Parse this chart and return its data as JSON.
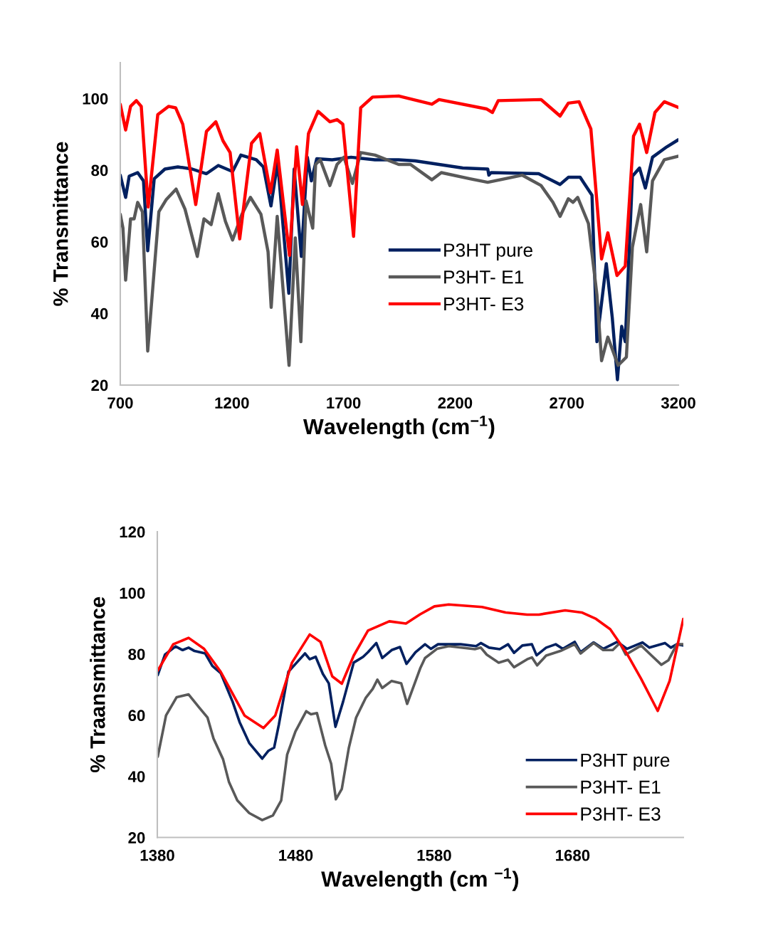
{
  "chart_data": [
    {
      "type": "line",
      "xlabel": "Wavelength (cm$^{−1}$)",
      "ylabel": "% Transmittance",
      "xlim": [
        700,
        3200
      ],
      "ylim": [
        20,
        110
      ],
      "xticks": [
        700,
        1200,
        1700,
        2200,
        2700,
        3200
      ],
      "yticks": [
        20,
        40,
        60,
        80,
        100
      ],
      "legend": "right",
      "series": [
        {
          "name": "P3HT pure",
          "color": "#002060",
          "x": [
            700,
            724,
            740,
            778,
            804,
            823,
            852,
            900,
            958,
            1022,
            1086,
            1139,
            1203,
            1240,
            1309,
            1341,
            1375,
            1405,
            1455,
            1479,
            1511,
            1538,
            1556,
            1580,
            1649,
            1734,
            1841,
            1947,
            2021,
            2234,
            2346,
            2351,
            2361,
            2574,
            2670,
            2707,
            2760,
            2813,
            2835,
            2877,
            2904,
            2927,
            2946,
            2962,
            2994,
            3026,
            3052,
            3084,
            3148,
            3200
          ],
          "values": [
            78.6,
            72.4,
            78.3,
            79.3,
            77.0,
            57.5,
            77.6,
            80.3,
            80.9,
            80.3,
            79.0,
            81.3,
            79.6,
            84.2,
            82.9,
            80.9,
            70.0,
            82.2,
            45.6,
            80.3,
            55.9,
            83.6,
            77.0,
            83.2,
            82.9,
            83.6,
            82.9,
            82.9,
            82.6,
            80.6,
            80.3,
            78.6,
            79.3,
            79.0,
            76.0,
            78.0,
            78.0,
            73.0,
            32.1,
            53.9,
            38.7,
            21.5,
            36.4,
            32.1,
            78.3,
            80.6,
            75.0,
            83.6,
            86.5,
            88.5
          ]
        },
        {
          "name": "P3HT- E1",
          "color": "#595959",
          "x": [
            700,
            712,
            724,
            746,
            762,
            778,
            799,
            823,
            873,
            905,
            950,
            990,
            1045,
            1075,
            1107,
            1139,
            1171,
            1203,
            1245,
            1283,
            1330,
            1362,
            1376,
            1403,
            1431,
            1456,
            1484,
            1509,
            1532,
            1562,
            1575,
            1596,
            1639,
            1671,
            1702,
            1740,
            1777,
            1841,
            1947,
            2000,
            2096,
            2138,
            2266,
            2346,
            2500,
            2585,
            2638,
            2670,
            2707,
            2728,
            2749,
            2797,
            2835,
            2856,
            2884,
            2930,
            2967,
            2994,
            3031,
            3058,
            3084,
            3137,
            3200
          ],
          "values": [
            67.7,
            63.8,
            49.3,
            66.4,
            66.4,
            71.0,
            68.4,
            29.5,
            68.4,
            71.7,
            74.7,
            69.1,
            55.9,
            66.4,
            64.8,
            73.4,
            65.7,
            60.5,
            67.7,
            72.4,
            67.7,
            57.2,
            41.7,
            67.1,
            45.3,
            25.5,
            61.1,
            32.1,
            71.4,
            63.8,
            81.6,
            82.9,
            75.7,
            81.6,
            83.6,
            76.3,
            84.9,
            84.2,
            81.6,
            81.6,
            77.3,
            79.3,
            77.6,
            76.6,
            78.6,
            75.7,
            71.0,
            67.1,
            72.0,
            71.0,
            72.4,
            65.1,
            45.3,
            26.8,
            33.4,
            25.5,
            27.8,
            58.5,
            70.4,
            57.2,
            77.0,
            82.9,
            83.9
          ]
        },
        {
          "name": "P3HT- E3",
          "color": "#ff0000",
          "x": [
            700,
            724,
            746,
            772,
            794,
            825,
            868,
            916,
            948,
            980,
            1038,
            1086,
            1128,
            1160,
            1192,
            1235,
            1288,
            1325,
            1373,
            1403,
            1458,
            1490,
            1516,
            1543,
            1586,
            1639,
            1671,
            1697,
            1745,
            1777,
            1830,
            1947,
            2096,
            2128,
            2340,
            2367,
            2393,
            2585,
            2670,
            2707,
            2755,
            2808,
            2856,
            2884,
            2925,
            2962,
            2999,
            3026,
            3058,
            3095,
            3137,
            3200
          ],
          "values": [
            98.4,
            91.2,
            97.8,
            99.4,
            97.8,
            69.7,
            95.5,
            97.8,
            97.4,
            92.8,
            70.4,
            90.8,
            93.5,
            88.2,
            84.9,
            60.8,
            87.5,
            90.2,
            73.7,
            85.6,
            56.2,
            86.5,
            70.4,
            90.2,
            96.4,
            93.5,
            94.1,
            92.8,
            61.5,
            97.4,
            100.4,
            100.7,
            98.4,
            99.7,
            97.1,
            96.1,
            99.4,
            99.7,
            95.1,
            98.7,
            99.1,
            91.5,
            55.2,
            62.5,
            50.6,
            53.2,
            89.5,
            92.8,
            84.9,
            96.1,
            99.1,
            97.5
          ]
        }
      ]
    },
    {
      "type": "line",
      "xlabel": "Wavelength (cm $^{−1}$)",
      "ylabel": "% Traansmittance",
      "xlim": [
        1380,
        1760
      ],
      "ylim": [
        20,
        120
      ],
      "xticks": [
        1380,
        1480,
        1580,
        1680
      ],
      "yticks": [
        20,
        40,
        60,
        80,
        100,
        120
      ],
      "legend": "lower right",
      "series": [
        {
          "name": "P3HT pure",
          "color": "#002060",
          "x": [
            1380.3,
            1385.5,
            1393.2,
            1398.3,
            1402.6,
            1406.9,
            1414.6,
            1419.8,
            1425.8,
            1434.4,
            1439.5,
            1446.4,
            1455.8,
            1460.1,
            1464.4,
            1467.8,
            1474.7,
            1480.7,
            1486.7,
            1490.1,
            1494.4,
            1499.6,
            1503.9,
            1508.7,
            1514.2,
            1521.9,
            1528.7,
            1532.2,
            1538.2,
            1542.5,
            1549.3,
            1555.3,
            1560.0,
            1566.5,
            1573.4,
            1577.7,
            1582.8,
            1599.1,
            1610.3,
            1613.7,
            1619.7,
            1627.4,
            1633.4,
            1637.7,
            1643.7,
            1650.6,
            1654.0,
            1660.9,
            1667.8,
            1672.9,
            1681.5,
            1685.8,
            1695.2,
            1702.1,
            1712.4,
            1719.2,
            1730.4,
            1735.5,
            1746.7,
            1751.0,
            1755.3,
            1760.0
          ],
          "values": [
            73.1,
            79.8,
            82.5,
            81.3,
            82.1,
            81.0,
            80.2,
            76.1,
            73.8,
            64.4,
            57.7,
            50.9,
            45.8,
            48.3,
            49.4,
            56.9,
            74.2,
            77.2,
            80.2,
            78.3,
            79.1,
            73.5,
            70.4,
            56.2,
            64.4,
            77.2,
            79.1,
            80.6,
            83.6,
            78.7,
            81.3,
            82.3,
            76.8,
            80.6,
            83.2,
            81.7,
            83.2,
            83.2,
            82.6,
            83.6,
            82.1,
            81.6,
            83.2,
            80.4,
            82.8,
            83.2,
            79.6,
            82.1,
            83.2,
            81.7,
            84.0,
            80.6,
            83.8,
            81.7,
            84.0,
            81.7,
            83.8,
            82.1,
            83.6,
            82.1,
            83.2,
            82.8
          ]
        },
        {
          "name": "P3HT- E1",
          "color": "#595959",
          "x": [
            1380.3,
            1386.3,
            1394.0,
            1402.6,
            1410.3,
            1416.3,
            1420.6,
            1427.5,
            1431.8,
            1437.8,
            1446.4,
            1455.8,
            1463.5,
            1469.5,
            1473.8,
            1479.8,
            1487.6,
            1491.0,
            1495.3,
            1501.3,
            1505.6,
            1509.0,
            1513.3,
            1518.4,
            1523.6,
            1530.5,
            1535.6,
            1539.0,
            1542.5,
            1549.3,
            1556.2,
            1560.5,
            1569.9,
            1573.4,
            1582.0,
            1590.5,
            1609.4,
            1613.7,
            1618.0,
            1626.6,
            1633.4,
            1637.7,
            1647.2,
            1650.6,
            1654.4,
            1660.9,
            1671.2,
            1681.5,
            1685.8,
            1695.2,
            1702.1,
            1709.0,
            1714.1,
            1718.4,
            1729.5,
            1736.4,
            1744.1,
            1749.3,
            1755.3,
            1760.0
          ],
          "values": [
            46.4,
            59.9,
            65.9,
            66.8,
            62.5,
            59.2,
            52.4,
            45.6,
            38.1,
            32.1,
            28.0,
            25.7,
            27.2,
            32.1,
            47.1,
            54.7,
            61.3,
            60.3,
            60.7,
            50.1,
            44.1,
            32.5,
            35.9,
            49.4,
            59.2,
            65.6,
            68.6,
            71.6,
            68.9,
            71.2,
            70.4,
            63.7,
            75.3,
            78.7,
            81.7,
            82.6,
            81.6,
            82.1,
            79.8,
            77.2,
            78.1,
            75.7,
            78.3,
            78.9,
            76.3,
            79.5,
            81.0,
            83.2,
            80.2,
            83.6,
            81.3,
            81.3,
            83.6,
            79.8,
            82.8,
            79.8,
            76.5,
            78.0,
            83.2,
            83.2
          ]
        },
        {
          "name": "P3HT- E3",
          "color": "#ff0000",
          "x": [
            1380.3,
            1391.5,
            1402.6,
            1413.8,
            1425.8,
            1443.0,
            1456.7,
            1465.2,
            1477.3,
            1490.1,
            1497.9,
            1506.4,
            1513.3,
            1521.9,
            1532.2,
            1547.6,
            1559.6,
            1569.9,
            1580.2,
            1590.5,
            1614.6,
            1631.7,
            1647.2,
            1655.7,
            1674.6,
            1686.6,
            1696.9,
            1707.2,
            1719.2,
            1729.5,
            1741.5,
            1750.1,
            1760.0
          ],
          "values": [
            74.6,
            83.2,
            85.3,
            81.7,
            74.2,
            59.9,
            55.8,
            59.9,
            77.2,
            86.4,
            84.0,
            72.7,
            70.3,
            79.5,
            87.7,
            90.7,
            90.0,
            93.0,
            95.6,
            96.2,
            95.4,
            93.6,
            92.9,
            92.9,
            94.3,
            93.6,
            91.5,
            88.1,
            80.2,
            71.9,
            61.4,
            71.2,
            91.5
          ]
        }
      ]
    }
  ]
}
